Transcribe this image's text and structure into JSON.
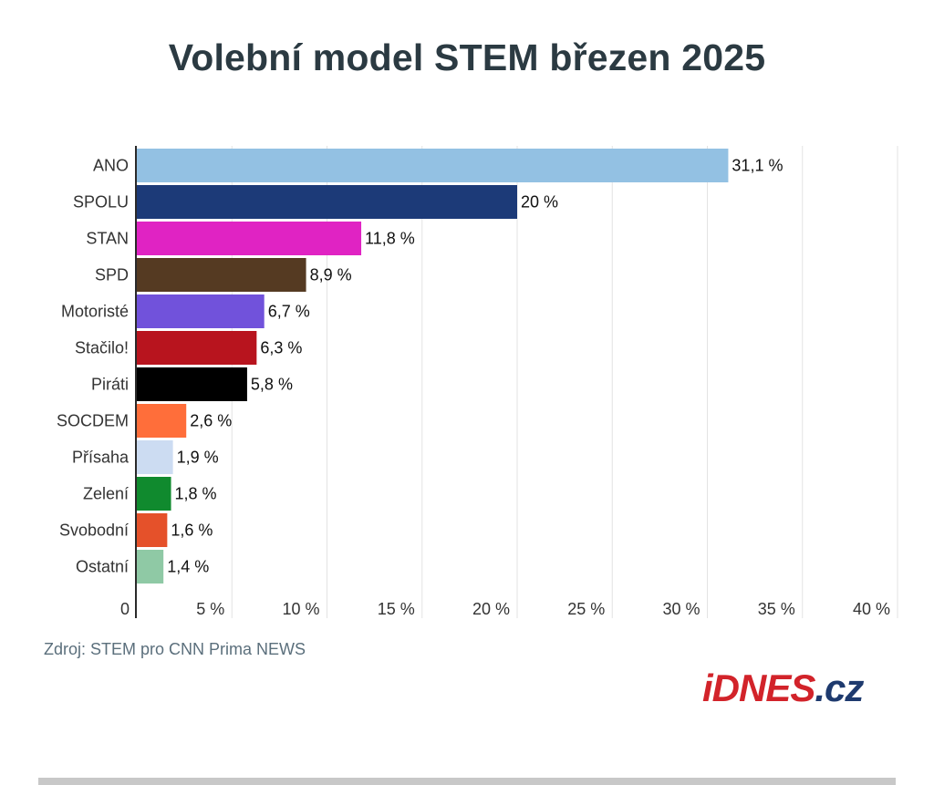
{
  "chart_data": {
    "type": "bar",
    "orientation": "horizontal",
    "title": "Volební model STEM březen 2025",
    "categories": [
      "ANO",
      "SPOLU",
      "STAN",
      "SPD",
      "Motoristé",
      "Stačilo!",
      "Piráti",
      "SOCDEM",
      "Přísaha",
      "Zelení",
      "Svobodní",
      "Ostatní"
    ],
    "values": [
      31.1,
      20,
      11.8,
      8.9,
      6.7,
      6.3,
      5.8,
      2.6,
      1.9,
      1.8,
      1.6,
      1.4
    ],
    "value_labels": [
      "31,1 %",
      "20 %",
      "11,8 %",
      "8,9 %",
      "6,7 %",
      "6,3 %",
      "5,8 %",
      "2,6 %",
      "1,9 %",
      "1,8 %",
      "1,6 %",
      "1,4 %"
    ],
    "colors": [
      "#93c1e3",
      "#1c3a78",
      "#e023c3",
      "#553a22",
      "#7152db",
      "#b8141e",
      "#000000",
      "#ff6e3a",
      "#ccdcf2",
      "#108a2e",
      "#e5512a",
      "#8fc9a5"
    ],
    "xlim": [
      0,
      40
    ],
    "xticks": [
      0,
      5,
      10,
      15,
      20,
      25,
      30,
      35,
      40
    ],
    "xtick_labels": [
      "0",
      "5 %",
      "10 %",
      "15 %",
      "20 %",
      "25 %",
      "30 %",
      "35 %",
      "40 %"
    ],
    "grid": true
  },
  "source": "Zdroj: STEM pro CNN Prima NEWS",
  "logo": {
    "part1": "iDNES",
    "part2": ".cz"
  }
}
